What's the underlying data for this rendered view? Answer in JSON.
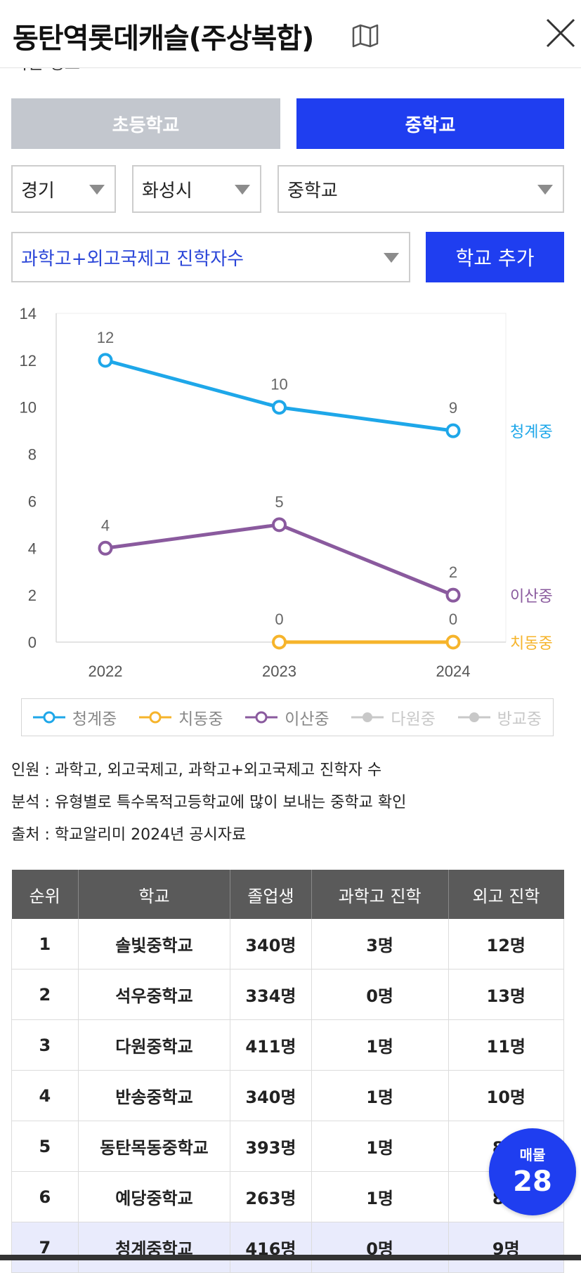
{
  "header": {
    "title": "동탄역롯데캐슬(주상복합)",
    "map_icon": "map-icon",
    "close_icon": "close-icon"
  },
  "segments": {
    "elementary": "초등학교",
    "middle": "중학교",
    "selected": "middle"
  },
  "filters": {
    "region": "경기",
    "city": "화성시",
    "school_type": "중학교",
    "metric": "과학고+외고국제고 진학자수",
    "add_button": "학교 추가"
  },
  "colors": {
    "accent": "#1f3ef0",
    "series_1": "#1ea7e9",
    "series_2": "#f6b42b",
    "series_3": "#8a5a9e",
    "inactive": "#c8c8c8"
  },
  "chart_data": {
    "type": "line",
    "x": [
      "2022",
      "2023",
      "2024"
    ],
    "ylim": [
      0,
      14
    ],
    "yticks": [
      0,
      2,
      4,
      6,
      8,
      10,
      12,
      14
    ],
    "series": [
      {
        "name": "청계중",
        "values": [
          12,
          10,
          9
        ]
      },
      {
        "name": "치동중",
        "values": [
          null,
          0,
          0
        ]
      },
      {
        "name": "이산중",
        "values": [
          4,
          5,
          2
        ]
      }
    ],
    "legend": {
      "placement": "bottom",
      "items": [
        {
          "name": "청계중",
          "active": true
        },
        {
          "name": "치동중",
          "active": true
        },
        {
          "name": "이산중",
          "active": true
        },
        {
          "name": "다원중",
          "active": false
        },
        {
          "name": "방교중",
          "active": false
        }
      ]
    }
  },
  "notes": [
    "인원 : 과학고, 외고국제고, 과학고+외고국제고 진학자 수",
    "분석 : 유형별로 특수목적고등학교에 많이 보내는 중학교 확인",
    "출처 : 학교알리미 2024년 공시자료"
  ],
  "table": {
    "headers": [
      "순위",
      "학교",
      "졸업생",
      "과학고 진학",
      "외고 진학"
    ],
    "rows": [
      [
        "1",
        "솔빛중학교",
        "340명",
        "3명",
        "12명"
      ],
      [
        "2",
        "석우중학교",
        "334명",
        "0명",
        "13명"
      ],
      [
        "3",
        "다원중학교",
        "411명",
        "1명",
        "11명"
      ],
      [
        "4",
        "반송중학교",
        "340명",
        "1명",
        "10명"
      ],
      [
        "5",
        "동탄목동중학교",
        "393명",
        "1명",
        "8명"
      ],
      [
        "6",
        "예당중학교",
        "263명",
        "1명",
        "8명"
      ],
      [
        "7",
        "청계중학교",
        "416명",
        "0명",
        "9명"
      ]
    ],
    "highlight_index": 6
  },
  "fab": {
    "label": "매물",
    "count": "28"
  }
}
